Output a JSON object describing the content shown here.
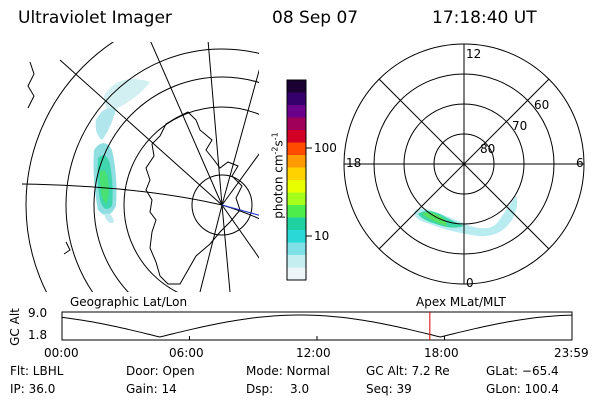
{
  "header": {
    "title": "Ultraviolet Imager",
    "date": "08 Sep 07",
    "time": "17:18:40 UT"
  },
  "colorbar": {
    "unit_label": "photon cm",
    "unit_exp1": "-2",
    "unit_s": "s",
    "unit_exp2": "-1",
    "ticks": [
      "100",
      "10"
    ],
    "colors": [
      "#1a0033",
      "#35006b",
      "#6a008a",
      "#a0005a",
      "#d10024",
      "#ff4b00",
      "#ff9a00",
      "#ffd200",
      "#e8ff00",
      "#a6ff1a",
      "#4ded4b",
      "#1fd1a0",
      "#2bd8d8",
      "#7fe0e6",
      "#c4eef0",
      "#ecf6f8"
    ]
  },
  "polar": {
    "lat_labels": [
      "80",
      "70",
      "60"
    ],
    "mlt_labels": {
      "top": "12",
      "left": "18",
      "right": "6",
      "bottom": "0"
    }
  },
  "panel_labels": {
    "left": "Geographic Lat/Lon",
    "right": "Apex MLat/MLT"
  },
  "altitude_plot": {
    "ylabel": "GC Alt",
    "yticks": [
      "9.0",
      "1.8"
    ],
    "xticks": [
      "00:00",
      "06:00",
      "12:00",
      "18:00",
      "23:59"
    ],
    "current_marker_hours": 17.31,
    "marker_color": "#e00000",
    "time_range_hours": [
      0,
      24
    ]
  },
  "status": {
    "row1": {
      "filter": "Flt: LBHL",
      "door": "Door: Open",
      "mode": "Mode: Normal",
      "gc_alt": "GC Alt: 7.2 Re",
      "glat": "GLat: −65.4"
    },
    "row2": {
      "ip": "IP: 36.0",
      "gain": "Gain: 14",
      "dsp_label": "Dsp:",
      "dsp_value": "3.0",
      "seq": "Seq: 39",
      "glon": "GLon: 100.4"
    }
  }
}
